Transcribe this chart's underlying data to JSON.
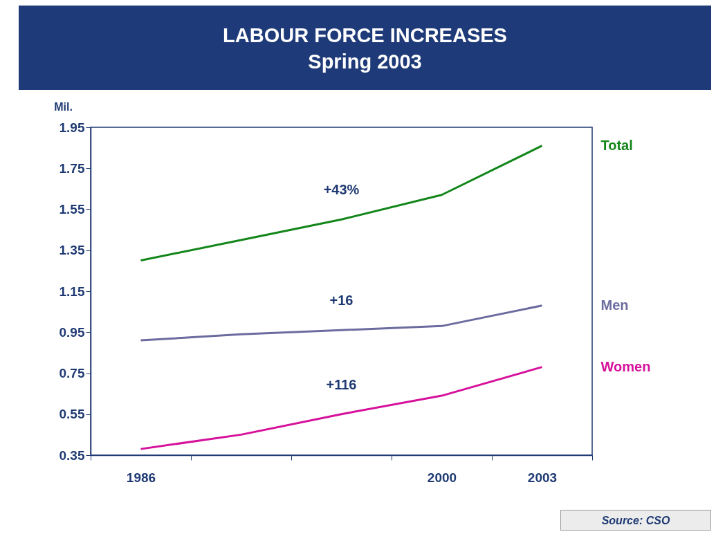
{
  "chart_data": {
    "type": "line",
    "title": "LABOUR FORCE INCREASES",
    "subtitle": "Spring 2003",
    "ylabel": "Mil.",
    "categories": [
      "1986",
      null,
      null,
      "2000",
      "2003"
    ],
    "series": [
      {
        "name": "Total",
        "color": "#13861a",
        "values": [
          1.3,
          1.4,
          1.5,
          1.62,
          1.86
        ]
      },
      {
        "name": "Men",
        "color": "#6b6b9f",
        "values": [
          0.91,
          0.94,
          0.96,
          0.98,
          1.08
        ]
      },
      {
        "name": "Women",
        "color": "#d6109a",
        "values": [
          0.38,
          0.45,
          0.55,
          0.64,
          0.78
        ]
      }
    ],
    "ylim": [
      0.35,
      1.95
    ],
    "yticks": [
      0.35,
      0.55,
      0.75,
      0.95,
      1.15,
      1.35,
      1.55,
      1.75,
      1.95
    ],
    "annotations": [
      "+43%",
      "+16",
      "+116",
      "Source: CSO"
    ]
  }
}
